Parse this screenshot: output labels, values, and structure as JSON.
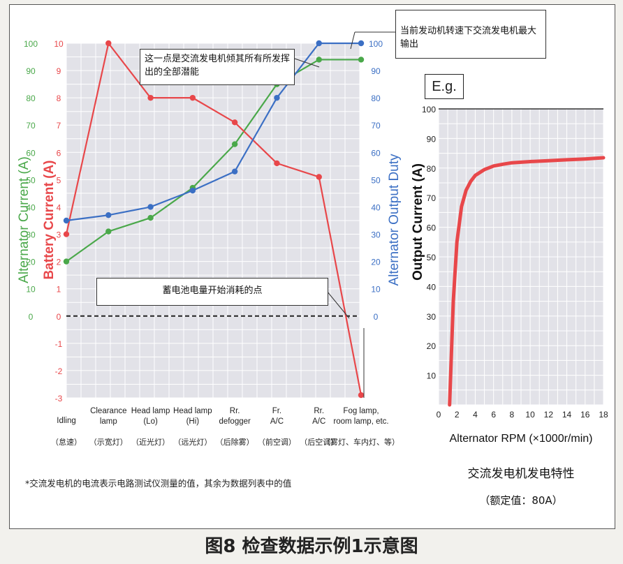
{
  "figure_title": "图8 检查数据示例1示意图",
  "footnote": "*交流发电机的电流表示电路测试仪测量的值，其余为数据列表中的值",
  "eg_label": "E.g.",
  "subchart_title": "交流发电机发电特性",
  "rated_text": "（额定值：80A）",
  "callouts": {
    "full_potential": "这一点是交流发电机倾其所有所发挥出的全部潜能",
    "max_output": "当前发动机转速下交流发电机最大输出",
    "battery_drain": "蓄电池电量开始消耗的点"
  },
  "colors": {
    "alternator": "#4aa84a",
    "battery": "#e8474a",
    "duty": "#3b6fc4",
    "rpm_curve": "#e8474a",
    "panel_bg": "#e2e2e8"
  },
  "chart_data": [
    {
      "type": "line",
      "categories": [
        {
          "en": "Idling",
          "cn": "（怠速）"
        },
        {
          "en": "Clearance lamp",
          "cn": "（示宽灯）"
        },
        {
          "en": "Head lamp (Lo)",
          "cn": "（近光灯）"
        },
        {
          "en": "Head lamp (Hi)",
          "cn": "（远光灯）"
        },
        {
          "en": "Rr. defogger",
          "cn": "（后除雾）"
        },
        {
          "en": "Fr. A/C",
          "cn": "（前空调）"
        },
        {
          "en": "Rr. A/C",
          "cn": "（后空调）"
        },
        {
          "en": "Fog lamp, room lamp, etc.",
          "cn": "（雾灯、车内灯、等）"
        }
      ],
      "y_axes": [
        {
          "label": "Alternator Current (A)",
          "ticks": [
            0,
            10,
            20,
            30,
            40,
            50,
            60,
            70,
            80,
            90,
            100
          ],
          "range": [
            -30,
            100
          ]
        },
        {
          "label": "Battery Current (A)",
          "ticks": [
            -3,
            -2,
            -1,
            0,
            1,
            2,
            3,
            4,
            5,
            6,
            7,
            8,
            9,
            10
          ],
          "range": [
            -3,
            10
          ]
        },
        {
          "label": "Alternator Output Duty",
          "ticks": [
            0,
            10,
            20,
            30,
            40,
            50,
            60,
            70,
            80,
            90,
            100
          ],
          "range": [
            -30,
            100
          ]
        }
      ],
      "series": [
        {
          "name": "Alternator Current (A)",
          "axis": 0,
          "values": [
            20,
            31,
            36,
            47,
            63,
            85,
            94,
            94
          ]
        },
        {
          "name": "Battery Current (A)",
          "axis": 1,
          "values": [
            3,
            10,
            8,
            8,
            7.1,
            5.6,
            5.1,
            -2.9
          ]
        },
        {
          "name": "Alternator Output Duty",
          "axis": 2,
          "values": [
            35,
            37,
            40,
            46,
            53,
            80,
            100,
            100
          ]
        }
      ],
      "zero_line": 0,
      "grid": true
    },
    {
      "type": "line",
      "xlabel": "Alternator RPM (×1000r/min)",
      "ylabel": "Output Current (A)",
      "xlim": [
        0,
        18
      ],
      "ylim": [
        0,
        100
      ],
      "xticks": [
        0,
        2,
        4,
        6,
        8,
        10,
        12,
        14,
        16,
        18
      ],
      "yticks": [
        10,
        20,
        30,
        40,
        50,
        60,
        70,
        80,
        90,
        100
      ],
      "x": [
        1.2,
        1.6,
        2.0,
        2.5,
        3.0,
        3.5,
        4.0,
        5.0,
        6.0,
        7.0,
        8.0,
        10.0,
        12.0,
        14.0,
        16.0,
        18.0
      ],
      "y": [
        0,
        35,
        55,
        67,
        72.5,
        75.5,
        77.5,
        79.5,
        80.7,
        81.3,
        81.8,
        82.2,
        82.5,
        82.8,
        83.1,
        83.5
      ]
    }
  ]
}
